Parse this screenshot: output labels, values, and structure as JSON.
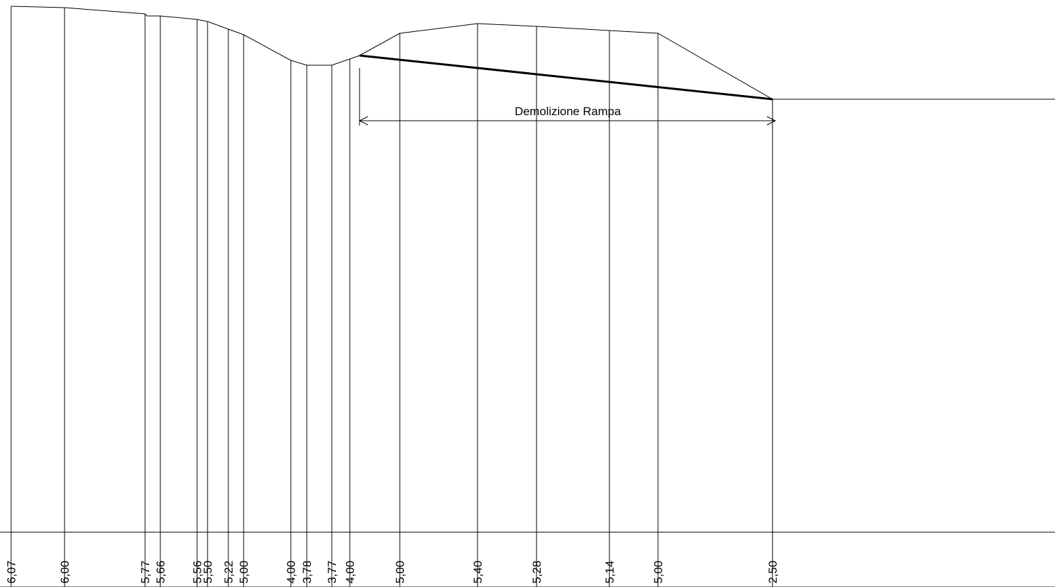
{
  "section": {
    "elevation_labels": [
      "6,07",
      "6,00",
      "5,77",
      "5,66",
      "5,56",
      "5,50",
      "5,22",
      "5,00",
      "4,00",
      "3,78",
      "3,77",
      "4,00",
      "5,00",
      "5,40",
      "5,28",
      "5,14",
      "5,00",
      "2,50"
    ],
    "dimension_label": "Demolizione Rampa"
  }
}
